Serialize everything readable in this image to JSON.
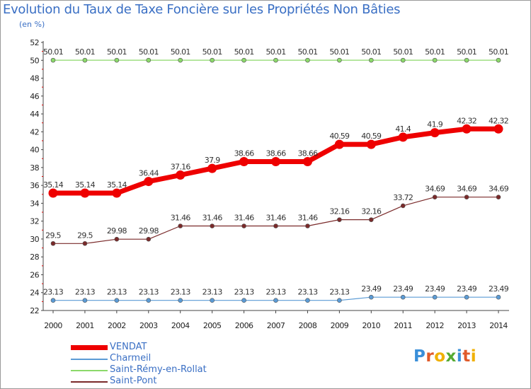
{
  "title": "Evolution du Taux de Taxe Foncière sur les Propriétés Non Bâties",
  "subtitle": "(en %)",
  "logo": {
    "text": "Proxiti",
    "letters": [
      "P",
      "r",
      "o",
      "x",
      "i",
      "t",
      "i"
    ],
    "colors": [
      "#3a8fd9",
      "#e05a2a",
      "#f0b000",
      "#55aa33",
      "#3a8fd9",
      "#e05a2a",
      "#f0b000"
    ]
  },
  "chart_data": {
    "type": "line",
    "title": "Evolution du Taux de Taxe Foncière sur les Propriétés Non Bâties",
    "ylabel": "(en %)",
    "x": [
      "2000",
      "2001",
      "2002",
      "2003",
      "2004",
      "2005",
      "2006",
      "2007",
      "2008",
      "2009",
      "2010",
      "2011",
      "2012",
      "2013",
      "2014"
    ],
    "ylim": [
      22,
      52
    ],
    "yticks": [
      "22",
      "24",
      "26",
      "28",
      "30",
      "32",
      "34",
      "36",
      "38",
      "40",
      "42",
      "44",
      "46",
      "48",
      "50",
      "52"
    ],
    "series": [
      {
        "name": "VENDAT",
        "color": "#ee0000",
        "labels": [
          "35.14",
          "35.14",
          "35.14",
          "36.44",
          "37.16",
          "37.9",
          "38.66",
          "38.66",
          "38.66",
          "40.59",
          "40.59",
          "41.4",
          "41.9",
          "42.32",
          "42.32"
        ],
        "values": [
          35.14,
          35.14,
          35.14,
          36.44,
          37.16,
          37.9,
          38.66,
          38.66,
          38.66,
          40.59,
          40.59,
          41.4,
          41.9,
          42.32,
          42.32
        ]
      },
      {
        "name": "Charmeil",
        "color": "#5b9bd5",
        "labels": [
          "23.13",
          "23.13",
          "23.13",
          "23.13",
          "23.13",
          "23.13",
          "23.13",
          "23.13",
          "23.13",
          "23.13",
          "23.49",
          "23.49",
          "23.49",
          "23.49",
          "23.49"
        ],
        "values": [
          23.13,
          23.13,
          23.13,
          23.13,
          23.13,
          23.13,
          23.13,
          23.13,
          23.13,
          23.13,
          23.49,
          23.49,
          23.49,
          23.49,
          23.49
        ]
      },
      {
        "name": "Saint-Rémy-en-Rollat",
        "color": "#8bd96a",
        "labels": [
          "50.01",
          "50.01",
          "50.01",
          "50.01",
          "50.01",
          "50.01",
          "50.01",
          "50.01",
          "50.01",
          "50.01",
          "50.01",
          "50.01",
          "50.01",
          "50.01",
          "50.01"
        ],
        "values": [
          50.01,
          50.01,
          50.01,
          50.01,
          50.01,
          50.01,
          50.01,
          50.01,
          50.01,
          50.01,
          50.01,
          50.01,
          50.01,
          50.01,
          50.01
        ]
      },
      {
        "name": "Saint-Pont",
        "color": "#7a2a2a",
        "labels": [
          "29.5",
          "29.5",
          "29.98",
          "29.98",
          "31.46",
          "31.46",
          "31.46",
          "31.46",
          "31.46",
          "32.16",
          "32.16",
          "33.72",
          "34.69",
          "34.69",
          "34.69"
        ],
        "values": [
          29.5,
          29.5,
          29.98,
          29.98,
          31.46,
          31.46,
          31.46,
          31.46,
          31.46,
          32.16,
          32.16,
          33.72,
          34.69,
          34.69,
          34.69
        ]
      }
    ]
  }
}
